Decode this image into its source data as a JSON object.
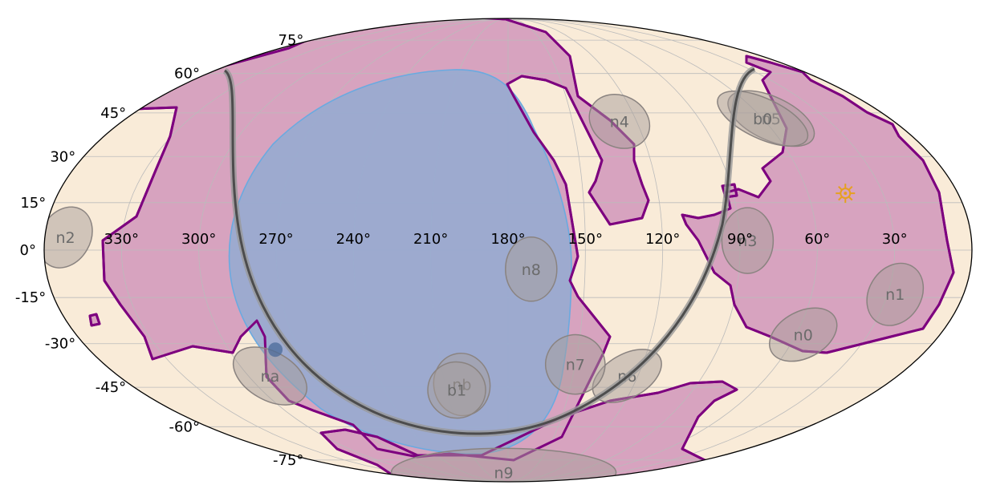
{
  "map": {
    "projection": "mollweide",
    "colors": {
      "ocean": "#f9ebd8",
      "land_fill": "#d7a3bf",
      "land_edge": "#7d007f",
      "blue_region_fill": "#98aad0",
      "blue_region_edge": "#6aaae0",
      "ellipse_fill": "#a89e9a",
      "ellipse_edge": "#8a8380",
      "grid": "#bbbbbb",
      "track": "#444444",
      "sun": "#e6a020",
      "marker": "#4a6a9a"
    },
    "lat_labels": [
      "75$^\\circ$",
      "60$^\\circ$",
      "45$^\\circ$",
      "30$^\\circ$",
      "15$^\\circ$",
      "0$^\\circ$",
      "-15$^\\circ$",
      "-30$^\\circ$",
      "-45$^\\circ$",
      "-60$^\\circ$",
      "-75$^\\circ$"
    ],
    "lat_label_text": [
      "75",
      "60",
      "45",
      "30",
      "15",
      "0",
      "-15",
      "-30",
      "-45",
      "-60",
      "-75"
    ],
    "lon_label_text": [
      "330",
      "300",
      "270",
      "240",
      "210",
      "180",
      "150",
      "120",
      "90",
      "60",
      "30"
    ],
    "degree_symbol": "°",
    "regions": [
      {
        "label": "n0",
        "lon": 57,
        "lat": -27,
        "w": 90,
        "h": 58,
        "rot": -28
      },
      {
        "label": "n1",
        "lon": 27,
        "lat": -14,
        "w": 65,
        "h": 82,
        "rot": 32
      },
      {
        "label": "n2",
        "lon": 352,
        "lat": 4,
        "w": 62,
        "h": 80,
        "rot": 30
      },
      {
        "label": "n3",
        "lon": 87,
        "lat": 3,
        "w": 64,
        "h": 82,
        "rot": 0
      },
      {
        "label": "n4",
        "lon": 128,
        "lat": 42,
        "w": 78,
        "h": 64,
        "rot": 28
      },
      {
        "label": "n5",
        "lon": 56,
        "lat": 43,
        "w": 116,
        "h": 54,
        "rot": 25
      },
      {
        "label": "n6",
        "lon": 125,
        "lat": -41,
        "w": 94,
        "h": 54,
        "rot": -30
      },
      {
        "label": "n7",
        "lon": 150,
        "lat": -37,
        "w": 74,
        "h": 74,
        "rot": -20
      },
      {
        "label": "n8",
        "lon": 171,
        "lat": -6,
        "w": 64,
        "h": 80,
        "rot": 0
      },
      {
        "label": "n9",
        "lon": 186,
        "lat": -82,
        "w": 280,
        "h": 60,
        "rot": 0
      },
      {
        "label": "na",
        "lon": 290,
        "lat": -41,
        "w": 100,
        "h": 60,
        "rot": 30
      },
      {
        "label": "nb",
        "lon": 202,
        "lat": -44,
        "w": 70,
        "h": 78,
        "rot": -10
      },
      {
        "label": "b0",
        "lon": 60,
        "lat": 43,
        "w": 122,
        "h": 50,
        "rot": 25
      },
      {
        "label": "b1",
        "lon": 205,
        "lat": -46,
        "w": 72,
        "h": 70,
        "rot": 5
      }
    ],
    "sun": {
      "lon": 45,
      "lat": 18
    },
    "marker": {
      "lon": 280,
      "lat": -32
    }
  }
}
